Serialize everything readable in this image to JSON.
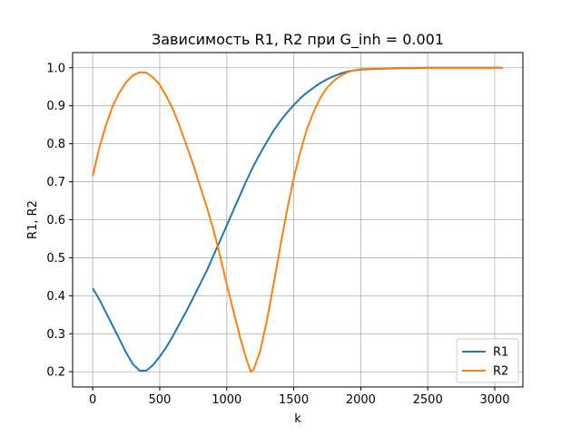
{
  "chart_data": {
    "type": "line",
    "title": "Зависимость R1, R2 при G_inh = 0.001",
    "xlabel": "k",
    "ylabel": "R1, R2",
    "xlim": [
      -150,
      3210
    ],
    "ylim": [
      0.16,
      1.04
    ],
    "xticks": [
      0,
      500,
      1000,
      1500,
      2000,
      2500,
      3000
    ],
    "yticks": [
      0.2,
      0.3,
      0.4,
      0.5,
      0.6,
      0.7,
      0.8,
      0.9,
      1.0
    ],
    "ytick_labels": [
      "0.2",
      "0.3",
      "0.4",
      "0.5",
      "0.6",
      "0.7",
      "0.8",
      "0.9",
      "1.0"
    ],
    "grid": true,
    "legend_position": "bottom-right",
    "series": [
      {
        "name": "R1",
        "color": "#1f77b4",
        "x": [
          0,
          50,
          100,
          150,
          200,
          250,
          300,
          350,
          400,
          450,
          500,
          550,
          600,
          650,
          700,
          750,
          800,
          850,
          900,
          950,
          1000,
          1050,
          1100,
          1150,
          1200,
          1250,
          1300,
          1350,
          1400,
          1450,
          1500,
          1550,
          1600,
          1650,
          1700,
          1750,
          1800,
          1850,
          1900,
          1950,
          2000,
          2100,
          2200,
          2300,
          2400,
          2500,
          2600,
          2700,
          2800,
          2900,
          3000,
          3060
        ],
        "y": [
          0.42,
          0.39,
          0.355,
          0.32,
          0.285,
          0.25,
          0.22,
          0.203,
          0.203,
          0.218,
          0.24,
          0.265,
          0.295,
          0.328,
          0.36,
          0.395,
          0.43,
          0.465,
          0.505,
          0.545,
          0.585,
          0.625,
          0.665,
          0.705,
          0.742,
          0.775,
          0.805,
          0.835,
          0.86,
          0.882,
          0.902,
          0.92,
          0.935,
          0.948,
          0.96,
          0.97,
          0.978,
          0.985,
          0.99,
          0.993,
          0.995,
          0.997,
          0.998,
          0.999,
          0.999,
          1.0,
          1.0,
          1.0,
          1.0,
          1.0,
          1.0,
          1.0
        ]
      },
      {
        "name": "R2",
        "color": "#ff7f0e",
        "x": [
          0,
          50,
          100,
          150,
          200,
          250,
          300,
          350,
          400,
          450,
          500,
          550,
          600,
          650,
          700,
          750,
          800,
          850,
          900,
          950,
          1000,
          1050,
          1100,
          1150,
          1180,
          1200,
          1250,
          1300,
          1350,
          1400,
          1450,
          1500,
          1550,
          1600,
          1650,
          1700,
          1750,
          1800,
          1850,
          1900,
          1950,
          2000,
          2100,
          2200,
          2300,
          2400,
          2500,
          2600,
          2700,
          2800,
          2900,
          3000,
          3060
        ],
        "y": [
          0.715,
          0.79,
          0.85,
          0.9,
          0.935,
          0.962,
          0.98,
          0.988,
          0.987,
          0.975,
          0.955,
          0.925,
          0.89,
          0.845,
          0.795,
          0.745,
          0.69,
          0.635,
          0.575,
          0.505,
          0.43,
          0.36,
          0.29,
          0.23,
          0.2,
          0.205,
          0.255,
          0.335,
          0.43,
          0.53,
          0.625,
          0.71,
          0.78,
          0.84,
          0.885,
          0.922,
          0.948,
          0.966,
          0.979,
          0.988,
          0.993,
          0.996,
          0.998,
          0.999,
          1.0,
          1.0,
          1.0,
          1.0,
          1.0,
          1.0,
          1.0,
          1.0,
          1.0
        ]
      }
    ]
  }
}
